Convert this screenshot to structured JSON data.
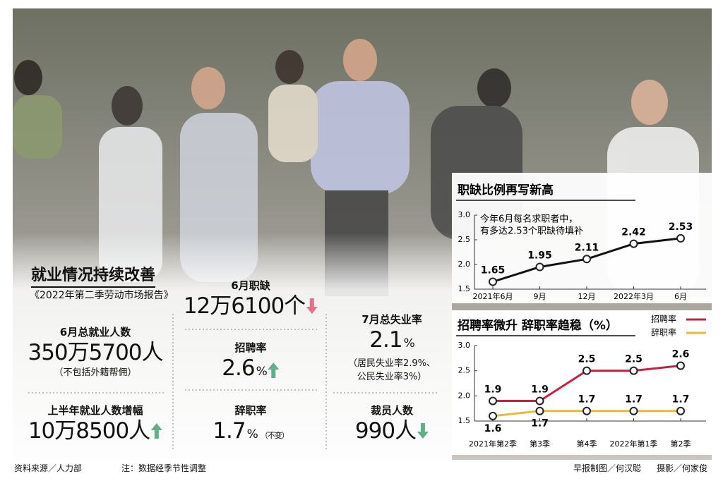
{
  "panel": {
    "title": "就业情况持续改善",
    "subtitle": "《2022年第二季劳动市场报告》"
  },
  "stats": [
    {
      "label": "6月职缺",
      "value": "12万6100个"
    },
    {
      "label": "6月总就业人数",
      "value": "350万5700人",
      "note": [
        "（不包括外籍帮佣）"
      ]
    },
    {
      "label": "招聘率",
      "value": "2.6",
      "unit": "%"
    },
    {
      "label": "7月总失业率",
      "value": "2.1",
      "unit": "%",
      "note": [
        "（居民失业率2.9%、",
        "公民失业率3%）"
      ]
    },
    {
      "label": "上半年就业人数增幅",
      "value": "10万8500人"
    },
    {
      "label": "辞职率",
      "value": "1.7",
      "unit": "%",
      "note": [
        "（不变）"
      ]
    },
    {
      "label": "裁员人数",
      "value": "990人"
    }
  ],
  "chart_data": [
    {
      "type": "line",
      "title": "职缺比例再写新高",
      "annotation": [
        "今年6月每名求职者中，",
        "有多达2.53个职缺待填补"
      ],
      "categories": [
        "2021年6月",
        "9月",
        "12月",
        "2022年3月",
        "6月"
      ],
      "values": [
        1.65,
        1.95,
        2.11,
        2.42,
        2.53
      ],
      "color": "#111111",
      "ylim": [
        1.5,
        3.0
      ],
      "yticks": [
        1.5,
        {
          "value": 2,
          "label": "2.0"
        },
        2.5,
        {
          "value": 3,
          "label": "3.0"
        }
      ]
    },
    {
      "type": "line",
      "title": "招聘率微升 辞职率趋稳（%）",
      "categories": [
        "2021年第2季",
        "第3季",
        "第4季",
        "2022年第1季",
        "第2季"
      ],
      "series": [
        {
          "name": "招聘率",
          "color": "#c8203f",
          "values": [
            1.9,
            1.9,
            2.5,
            2.5,
            2.6
          ]
        },
        {
          "name": "辞职率",
          "color": "#e9b93a",
          "values": [
            1.6,
            1.7,
            1.7,
            1.7,
            1.7
          ]
        }
      ],
      "ylim": [
        1.5,
        3.0
      ],
      "yticks": [
        1.5,
        {
          "value": 2,
          "label": "2.0"
        },
        2.5,
        {
          "value": 3,
          "label": "3.0"
        }
      ],
      "legend": "upper right"
    }
  ],
  "footer": [
    "资料来源／人力部",
    "注：数据经季节性调整",
    "早报制图／何汉聪",
    "摄影／何家俊"
  ]
}
